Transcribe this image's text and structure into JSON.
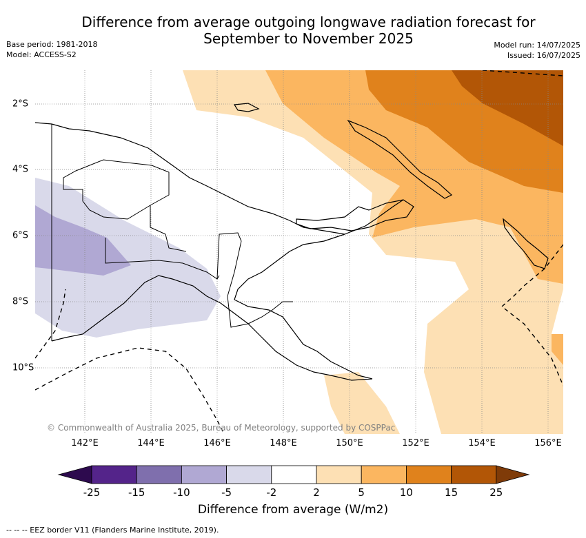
{
  "title_line1": "Difference from average outgoing longwave radiation forecast for",
  "title_line2": "September to November 2025",
  "base_period": "Base period: 1981-2018",
  "model": "Model: ACCESS-S2",
  "model_run": "Model run: 14/07/2025",
  "issued": "Issued: 16/07/2025",
  "copyright": "© Commonwealth of Australia 2025, Bureau of Meteorology, supported by COSPPac",
  "colorbar_label": "Difference from average (W/m2)",
  "footer": "--  --  -- EEZ border V11 (Flanders Marine Institute, 2019).",
  "lon_ticks": [
    "142°E",
    "144°E",
    "146°E",
    "148°E",
    "150°E",
    "152°E",
    "154°E",
    "156°E"
  ],
  "lat_ticks": [
    "2°S",
    "4°S",
    "6°S",
    "8°S",
    "10°S"
  ],
  "colorbar": {
    "ticks": [
      "-25",
      "-15",
      "-10",
      "-5",
      "-2",
      "2",
      "5",
      "10",
      "15",
      "25"
    ],
    "colors": [
      "#2d0a4e",
      "#54248a",
      "#7f6fad",
      "#b0a8d3",
      "#d9d9ea",
      "#ffffff",
      "#fde0b4",
      "#fbb660",
      "#e0821c",
      "#b25606",
      "#7f3b08"
    ]
  }
}
